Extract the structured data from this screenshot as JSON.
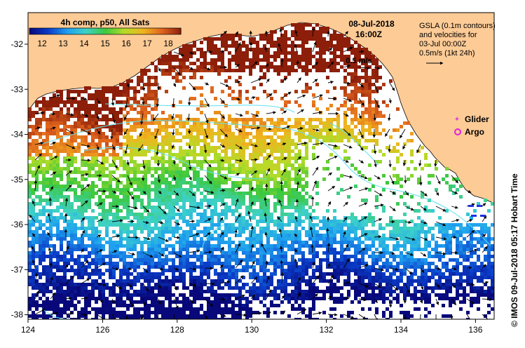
{
  "map": {
    "colorbar": {
      "title": "4h comp, p50, All Sats",
      "ticks": [
        "12",
        "13",
        "14",
        "15",
        "16",
        "17",
        "18"
      ],
      "value_min": 11.4,
      "value_max": 18.6,
      "colors": [
        "#08087a",
        "#0a3cc8",
        "#1ea0f0",
        "#3ed2c8",
        "#3cc83c",
        "#b4dc28",
        "#f0b41e",
        "#e0641e",
        "#8c1e0a"
      ]
    },
    "datetime": {
      "date": "08-Jul-2018",
      "time": "16:00Z"
    },
    "gsla_info": [
      "GSLA (0.1m contours)",
      "and velocities for",
      "03-Jul 00:00Z",
      "0.5m/s (1kt 24h)"
    ],
    "velocity_scale_label": "0.5 m/s",
    "legend": {
      "glider": "Glider",
      "argo": "Argo"
    },
    "credit": "© IMOS 09-Jul-2018 05:17 Hobart Time",
    "x_axis": {
      "ticks": [
        "124",
        "126",
        "128",
        "130",
        "132",
        "134",
        "136"
      ],
      "range": [
        124,
        136.5
      ]
    },
    "y_axis": {
      "ticks": [
        "-32",
        "-33",
        "-34",
        "-35",
        "-36",
        "-37",
        "-38"
      ],
      "range": [
        -38.1,
        -31.3
      ]
    },
    "colors": {
      "land": "#fdcb96",
      "contour": "#5ee0f0",
      "glider": "#e040e0",
      "argo": "#e020e0",
      "arrow": "#000000"
    }
  }
}
